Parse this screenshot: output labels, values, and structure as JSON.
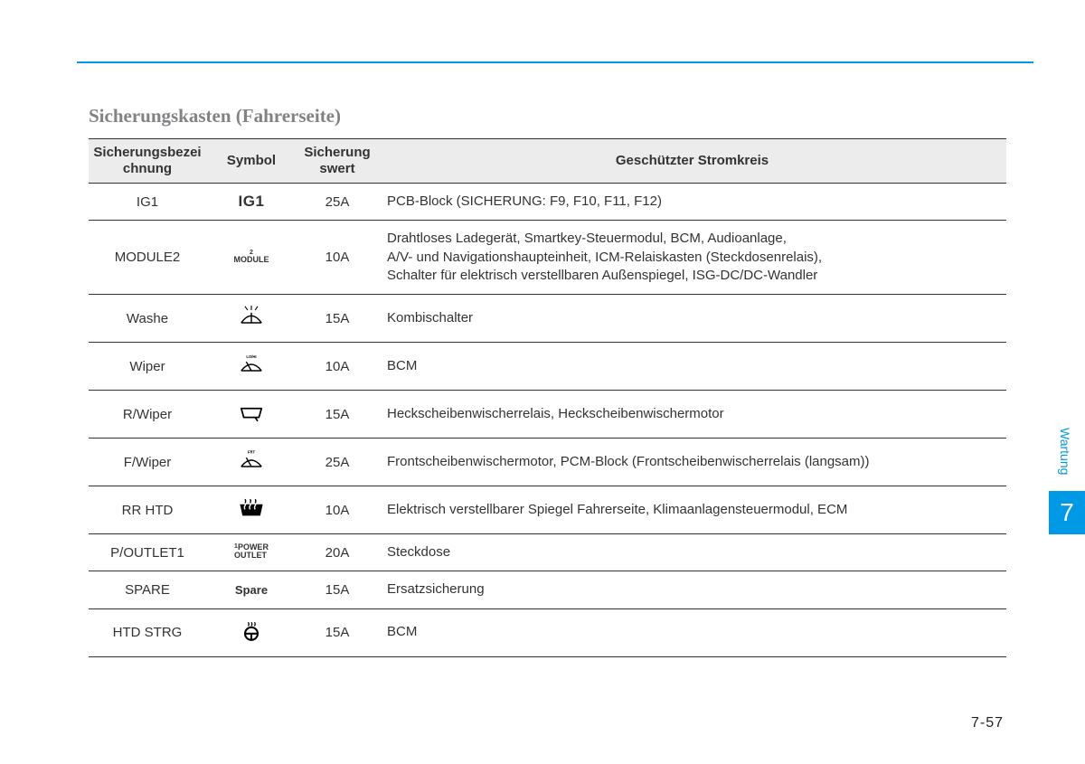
{
  "title": "Sicherungskasten (Fahrerseite)",
  "table": {
    "headers": {
      "c1": "Sicherungsbezei\nchnung",
      "c2": "Symbol",
      "c3": "Sicherung\nswert",
      "c4": "Geschützter Stromkreis"
    },
    "rows": [
      {
        "name": "IG1",
        "symbol_kind": "ig1",
        "symbol_text": "IG1",
        "rating": "25A",
        "circuit": "PCB-Block (SICHERUNG: F9, F10, F11, F12)"
      },
      {
        "name": "MODULE2",
        "symbol_kind": "module",
        "symbol_sup": "2",
        "symbol_text": "MODULE",
        "rating": "10A",
        "circuit": "Drahtloses Ladegerät, Smartkey-Steuermodul, BCM, Audioanlage,\nA/V- und Navigationshaupteinheit, ICM-Relaiskasten (Steckdosenrelais),\nSchalter für elektrisch verstellbaren Außenspiegel, ISG-DC/DC-Wandler"
      },
      {
        "name": "Washe",
        "symbol_kind": "washer",
        "rating": "15A",
        "circuit": "Kombischalter"
      },
      {
        "name": "Wiper",
        "symbol_kind": "wiper",
        "rating": "10A",
        "circuit": "BCM"
      },
      {
        "name": "R/Wiper",
        "symbol_kind": "rwiper",
        "rating": "15A",
        "circuit": "Heckscheibenwischerrelais, Heckscheibenwischermotor"
      },
      {
        "name": "F/Wiper",
        "symbol_kind": "fwiper",
        "rating": "25A",
        "circuit": "Frontscheibenwischermotor, PCM-Block (Frontscheibenwischerrelais (langsam))"
      },
      {
        "name": "RR HTD",
        "symbol_kind": "rrhtd",
        "rating": "10A",
        "circuit": "Elektrisch verstellbarer Spiegel Fahrerseite, Klimaanlagensteuermodul, ECM"
      },
      {
        "name": "P/OUTLET1",
        "symbol_kind": "poutlet",
        "symbol_sup": "1",
        "symbol_text": "POWER\nOUTLET",
        "rating": "20A",
        "circuit": "Steckdose"
      },
      {
        "name": "SPARE",
        "symbol_kind": "spare",
        "symbol_text": "Spare",
        "rating": "15A",
        "circuit": "Ersatzsicherung"
      },
      {
        "name": "HTD STRG",
        "symbol_kind": "htdstrg",
        "rating": "15A",
        "circuit": "BCM"
      }
    ]
  },
  "side_tab": {
    "label": "Wartung",
    "number": "7"
  },
  "page_number": "7-57",
  "colors": {
    "accent": "#0099e5",
    "title_gray": "#808285",
    "header_bg": "#ececec",
    "border": "#333333",
    "text": "#333333",
    "page_bg": "#ffffff"
  }
}
